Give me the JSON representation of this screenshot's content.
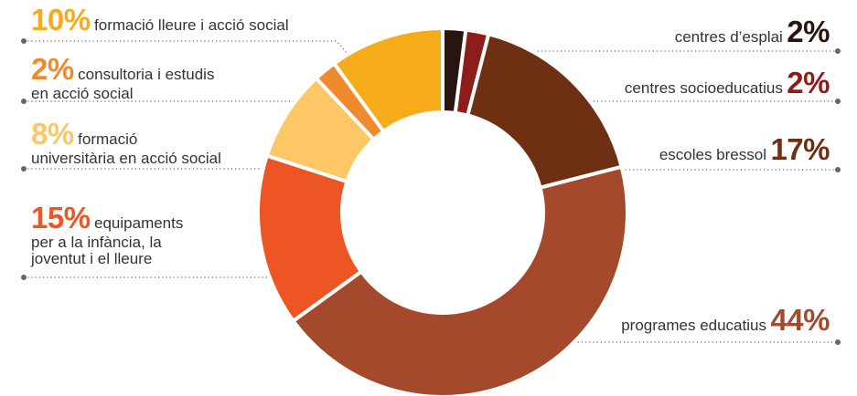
{
  "chart_data": {
    "type": "pie",
    "donut": true,
    "slices": [
      {
        "label": "centres d’esplai",
        "value": 2,
        "display": "2%",
        "color": "#2a1412"
      },
      {
        "label": "centres socioeducatius",
        "value": 2,
        "display": "2%",
        "color": "#8c1d1a"
      },
      {
        "label": "escoles bressol",
        "value": 17,
        "display": "17%",
        "color": "#6e2f12"
      },
      {
        "label": "programes educatius",
        "value": 44,
        "display": "44%",
        "color": "#a4492c"
      },
      {
        "label": "equipaments per a la infància, la joventut i el lleure",
        "value": 15,
        "display": "15%",
        "color": "#ee5525"
      },
      {
        "label": "formació universitària en acció social",
        "value": 8,
        "display": "8%",
        "color": "#fcc764"
      },
      {
        "label": "consultoria i estudis en acció social",
        "value": 2,
        "display": "2%",
        "color": "#f18a2e"
      },
      {
        "label": "formació lleure i acció social",
        "value": 10,
        "display": "10%",
        "color": "#f6ab1b"
      }
    ]
  },
  "labels": {
    "s0": {
      "pct": "2%",
      "text": "centres d’esplai"
    },
    "s1": {
      "pct": "2%",
      "text": "centres socioeducatius"
    },
    "s2": {
      "pct": "17%",
      "text": "escoles bressol"
    },
    "s3": {
      "pct": "44%",
      "text": "programes educatius"
    },
    "s4": {
      "pct": "15%",
      "line1": "equipaments",
      "line2": "per a la infància, la",
      "line3": "joventut i el lleure"
    },
    "s5": {
      "pct": "8%",
      "line1": "formació",
      "line2": "universitària en acció social"
    },
    "s6": {
      "pct": "2%",
      "line1": "consultoria i estudis",
      "line2": "en acció social"
    },
    "s7": {
      "pct": "10%",
      "text": "formació lleure i acció social"
    }
  }
}
